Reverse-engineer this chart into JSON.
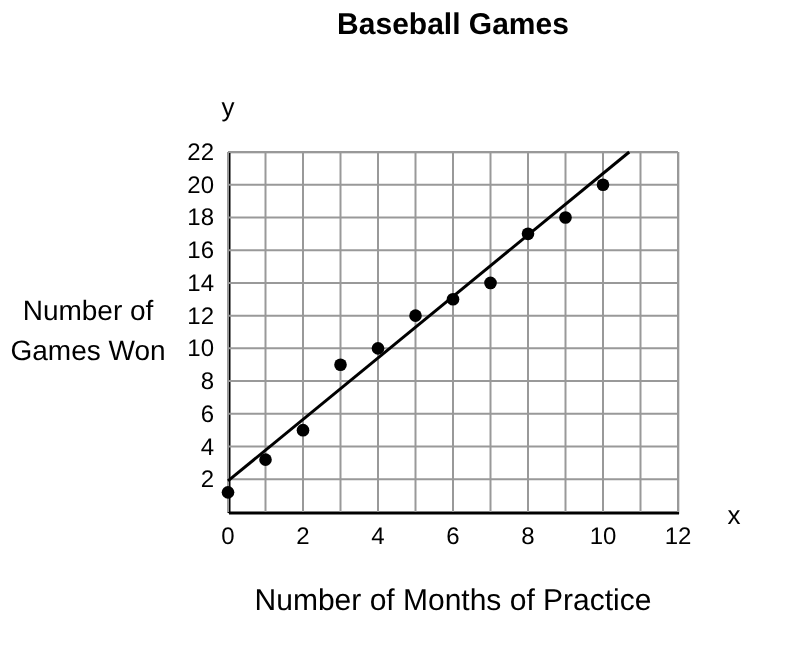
{
  "chart_data": {
    "type": "scatter",
    "title": "Baseball Games",
    "xlabel": "Number of Months of Practice",
    "ylabel": "Number of Games Won",
    "annotations": [
      "x",
      "y"
    ],
    "xlim": [
      0,
      12
    ],
    "ylim": [
      0,
      22
    ],
    "xticks": [
      0,
      {
        "value": 1,
        "label": null
      },
      2,
      {
        "value": 3,
        "label": null
      },
      4,
      {
        "value": 5,
        "label": null
      },
      6,
      {
        "value": 7,
        "label": null
      },
      8,
      {
        "value": 9,
        "label": null
      },
      10,
      {
        "value": 11,
        "label": null
      },
      12
    ],
    "yticks": [
      2,
      4,
      6,
      8,
      10,
      12,
      14,
      16,
      18,
      20,
      22
    ],
    "grid": true,
    "series": [
      {
        "color": "#000000",
        "marker": "circle",
        "x": [
          0,
          1,
          2,
          3,
          4,
          5,
          6,
          7,
          8,
          9,
          10
        ],
        "values": [
          1.2,
          3.2,
          5,
          9,
          10,
          12,
          13,
          14,
          17,
          18,
          20
        ]
      },
      {
        "type": "line",
        "color": "#000000",
        "x": [
          0,
          10.7
        ],
        "values": [
          1.9,
          22
        ]
      }
    ]
  }
}
